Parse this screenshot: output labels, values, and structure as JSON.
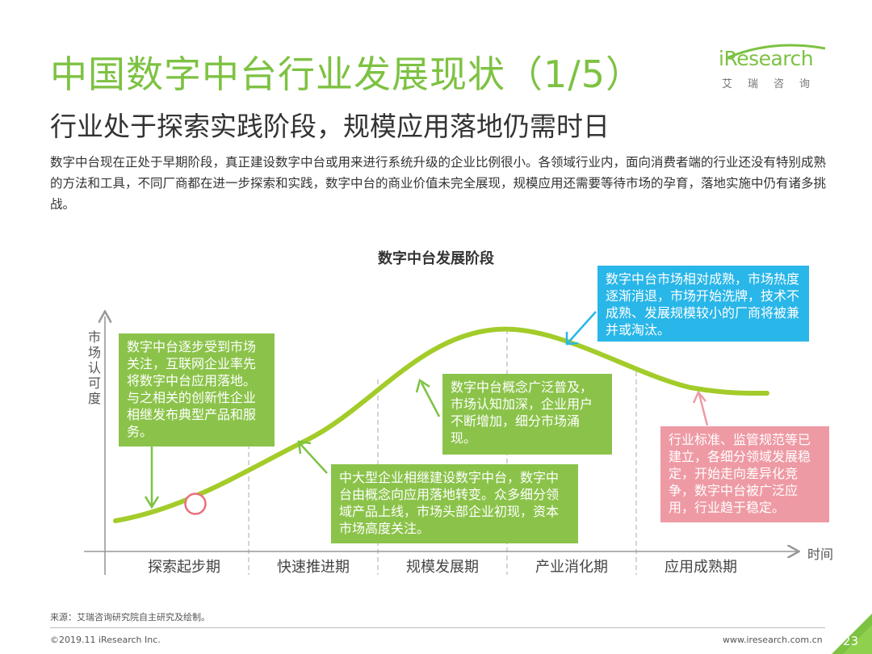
{
  "header": {
    "title": "中国数字中台行业发展现状（1/5）",
    "subtitle": "行业处于探索实践阶段，规模应用落地仍需时日"
  },
  "logo": {
    "word": "iResearch",
    "chinese": "艾瑞咨询"
  },
  "intro": "数字中台现在正处于早期阶段，真正建设数字中台或用来进行系统升级的企业比例很小。各领域行业内，面向消费者端的行业还没有特别成熟的方法和工具，不同厂商都在进一步探索和实践，数字中台的商业价值未完全展现，规模应用还需要等待市场的孕育，落地实施中仍有诸多挑战。",
  "diagram": {
    "title": "数字中台发展阶段",
    "y_axis_label": "市场认可度",
    "x_axis_label": "时间",
    "stages": [
      "探索起步期",
      "快速推进期",
      "规模发展期",
      "产业消化期",
      "应用成熟期"
    ],
    "callouts": [
      {
        "text": "数字中台逐步受到市场关注，互联网企业率先将数字中台应用落地。与之相关的创新性企业相继发布典型产品和服务。",
        "color": "#8bc34a"
      },
      {
        "text": "中大型企业相继建设数字中台，数字中台由概念向应用落地转变。众多细分领域产品上线，市场头部企业初现，资本市场高度关注。",
        "color": "#8bc34a"
      },
      {
        "text": "数字中台概念广泛普及，市场认知加深，企业用户不断增加，细分市场涌现。",
        "color": "#8bc34a"
      },
      {
        "text": "数字中台市场相对成熟，市场热度逐渐消退，市场开始洗牌，技术不成熟、发展规模较小的厂商将被兼并或淘汰。",
        "color": "#29b6e8"
      },
      {
        "text": "行业标准、监管规范等已建立，各细分领域发展稳定，开始走向差异化竞争，数字中台被广泛应用，行业趋于稳定。",
        "color": "#ee9aa4"
      }
    ],
    "current_stage_marker": "探索起步期"
  },
  "footer": {
    "source": "来源：艾瑞咨询研究院自主研究及绘制。",
    "copyright": "©2019.11 iResearch Inc.",
    "website": "www.iresearch.com.cn",
    "page_number": "23"
  },
  "colors": {
    "accent_green": "#7dc242",
    "curve_green": "#a3cc2a",
    "callout_green": "#8bc34a",
    "callout_blue": "#29b6e8",
    "callout_pink": "#ee9aa4",
    "marker_red": "#e8707c"
  }
}
